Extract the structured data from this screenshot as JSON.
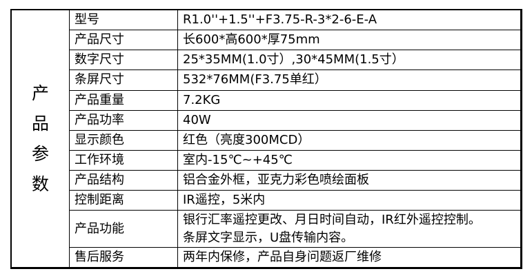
{
  "header": {
    "title": "产品参数"
  },
  "table": {
    "rows": [
      {
        "label": "型号",
        "value": "R1.0''+1.5''+F3.75-R-3*2-6-E-A"
      },
      {
        "label": "产品尺寸",
        "value": "长600*高600*厚75mm"
      },
      {
        "label": "数字尺寸",
        "value": "25*35MM(1.0寸）,30*45MM(1.5寸）"
      },
      {
        "label": "条屏尺寸",
        "value": "532*76MM(F3.75单红）"
      },
      {
        "label": "产品重量",
        "value": "7.2KG"
      },
      {
        "label": "产品功率",
        "value": "40W"
      },
      {
        "label": "显示颜色",
        "value": "红色（亮度300MCD）"
      },
      {
        "label": "工作环境",
        "value": "室内-15℃~+45℃"
      },
      {
        "label": "产品结构",
        "value": "铝合金外框，亚克力彩色喷绘面板"
      },
      {
        "label": "控制距离",
        "value": "IR遥控，5米内"
      },
      {
        "label": "产品功能",
        "value": "银行汇率遥控更改、月日时间自动，IR红外遥控控制。\n条屏文字显示，U盘传输内容。"
      },
      {
        "label": "售后服务",
        "value": "两年内保修，产品自身问题返厂维修"
      }
    ]
  },
  "colors": {
    "background": "#ffffff",
    "border": "#000000",
    "text": "#000000"
  }
}
